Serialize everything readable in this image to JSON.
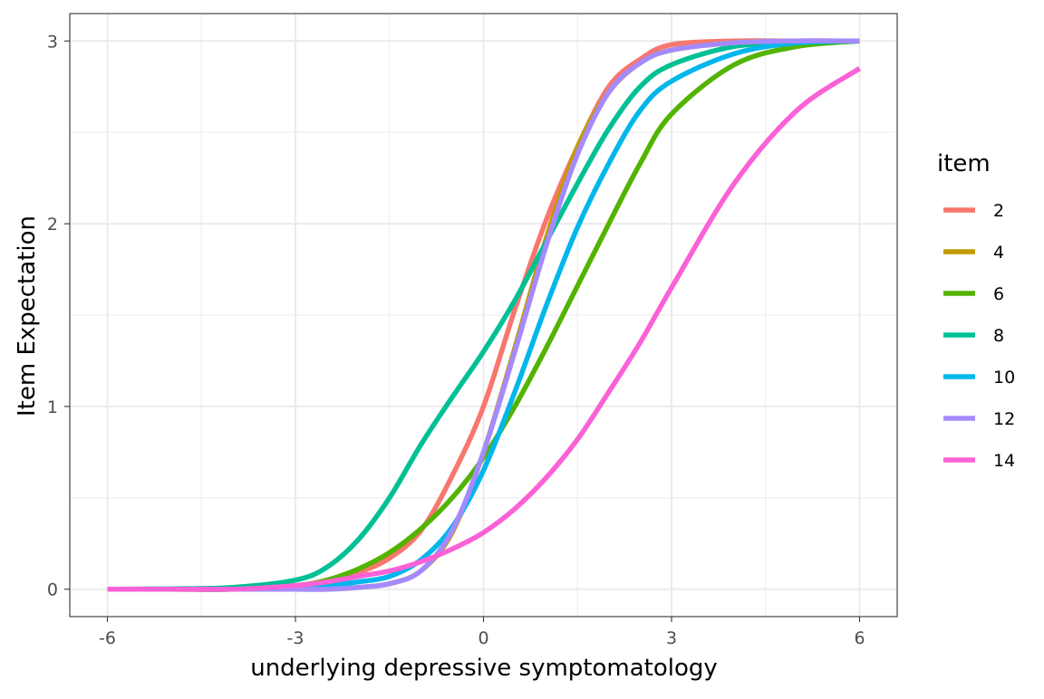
{
  "chart_data": {
    "type": "line",
    "title": "",
    "xlabel": "underlying depressive symptomatology",
    "ylabel": "Item Expectation",
    "xlim": [
      -6.6,
      6.6
    ],
    "ylim": [
      -0.15,
      3.15
    ],
    "x_ticks": [
      -6,
      -3,
      0,
      3,
      6
    ],
    "x_tick_labels": [
      "-6",
      "-3",
      "0",
      "3",
      "6"
    ],
    "y_ticks": [
      0,
      1,
      2,
      3
    ],
    "y_tick_labels": [
      "0",
      "1",
      "2",
      "3"
    ],
    "grid": true,
    "legend": {
      "title": "item",
      "position": "right"
    },
    "x": [
      -6,
      -5,
      -4,
      -3,
      -2.5,
      -2,
      -1.5,
      -1,
      -0.5,
      0,
      0.5,
      1,
      1.5,
      2,
      2.5,
      3,
      4,
      5,
      6
    ],
    "series": [
      {
        "name": "2",
        "color": "#F8766D",
        "values": [
          0,
          0,
          0,
          0.01,
          0.04,
          0.09,
          0.17,
          0.32,
          0.62,
          1.0,
          1.53,
          2.02,
          2.42,
          2.75,
          2.9,
          2.98,
          3.0,
          3.0,
          3.0
        ]
      },
      {
        "name": "4",
        "color": "#C49A00",
        "values": [
          0,
          0,
          0,
          0,
          0,
          0.01,
          0.03,
          0.1,
          0.31,
          0.75,
          1.32,
          1.92,
          2.42,
          2.72,
          2.88,
          2.95,
          2.99,
          3.0,
          3.0
        ]
      },
      {
        "name": "6",
        "color": "#53B400",
        "values": [
          0,
          0,
          0,
          0.02,
          0.05,
          0.11,
          0.2,
          0.33,
          0.5,
          0.72,
          1.0,
          1.32,
          1.66,
          2.0,
          2.33,
          2.6,
          2.87,
          2.97,
          3.0
        ]
      },
      {
        "name": "8",
        "color": "#00C094",
        "values": [
          0,
          0.002,
          0.01,
          0.05,
          0.12,
          0.27,
          0.5,
          0.79,
          1.05,
          1.3,
          1.58,
          1.9,
          2.22,
          2.52,
          2.75,
          2.87,
          2.97,
          2.99,
          3.0
        ]
      },
      {
        "name": "10",
        "color": "#00B6EB",
        "values": [
          0,
          0,
          0,
          0.01,
          0.02,
          0.04,
          0.07,
          0.16,
          0.34,
          0.65,
          1.08,
          1.55,
          1.98,
          2.33,
          2.62,
          2.78,
          2.93,
          2.99,
          3.0
        ]
      },
      {
        "name": "12",
        "color": "#A58AFF",
        "values": [
          0,
          0,
          0,
          0,
          0,
          0.01,
          0.03,
          0.1,
          0.32,
          0.75,
          1.3,
          1.88,
          2.38,
          2.72,
          2.88,
          2.95,
          2.99,
          3.0,
          3.0
        ]
      },
      {
        "name": "14",
        "color": "#FB61D7",
        "values": [
          0,
          0,
          0,
          0.02,
          0.04,
          0.07,
          0.1,
          0.15,
          0.22,
          0.31,
          0.44,
          0.61,
          0.82,
          1.08,
          1.35,
          1.65,
          2.22,
          2.62,
          2.85
        ]
      }
    ]
  }
}
